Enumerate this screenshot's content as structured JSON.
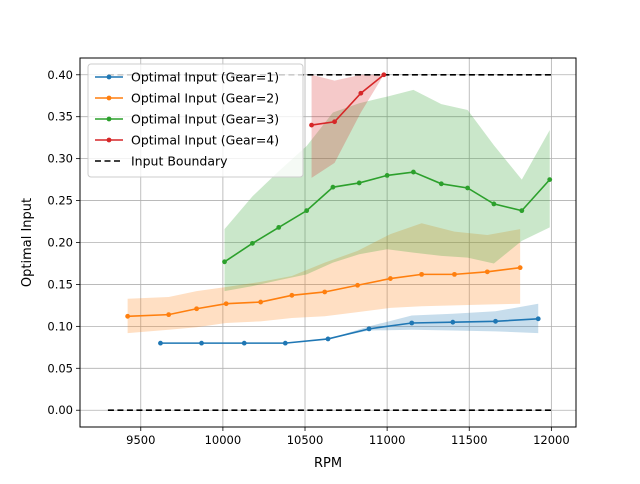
{
  "chart_data": {
    "type": "line",
    "title": "",
    "xlabel": "RPM",
    "ylabel": "Optimal Input",
    "xlim": [
      9130,
      12150
    ],
    "ylim": [
      -0.02,
      0.42
    ],
    "xticks": [
      9500,
      10000,
      10500,
      11000,
      11500,
      12000
    ],
    "xtick_labels": [
      "9500",
      "10000",
      "10500",
      "11000",
      "11500",
      "12000"
    ],
    "yticks": [
      0.0,
      0.05,
      0.1,
      0.15,
      0.2,
      0.25,
      0.3,
      0.35,
      0.4
    ],
    "ytick_labels": [
      "0.00",
      "0.05",
      "0.10",
      "0.15",
      "0.20",
      "0.25",
      "0.30",
      "0.35",
      "0.40"
    ],
    "grid": true,
    "legend_position": "top-left",
    "series": [
      {
        "name": "Optimal Input (Gear=1)",
        "color": "#1f77b4",
        "x": [
          9620,
          9870,
          10130,
          10380,
          10640,
          10890,
          11150,
          11400,
          11660,
          11920
        ],
        "y": [
          0.08,
          0.08,
          0.08,
          0.08,
          0.085,
          0.097,
          0.104,
          0.105,
          0.106,
          0.109
        ],
        "band": {
          "x": [
            10640,
            10890,
            11150,
            11400,
            11660,
            11920
          ],
          "upper": [
            0.085,
            0.1,
            0.113,
            0.115,
            0.118,
            0.127
          ],
          "lower": [
            0.085,
            0.095,
            0.096,
            0.095,
            0.094,
            0.092
          ]
        }
      },
      {
        "name": "Optimal Input (Gear=2)",
        "color": "#ff7f0e",
        "x": [
          9420,
          9670,
          9840,
          10020,
          10230,
          10420,
          10620,
          10820,
          11020,
          11210,
          11410,
          11610,
          11810
        ],
        "y": [
          0.112,
          0.114,
          0.121,
          0.127,
          0.129,
          0.137,
          0.141,
          0.149,
          0.157,
          0.162,
          0.162,
          0.165,
          0.17
        ],
        "band": {
          "x": [
            9420,
            9670,
            9840,
            10020,
            10230,
            10420,
            10620,
            10820,
            11020,
            11210,
            11410,
            11610,
            11810
          ],
          "upper": [
            0.133,
            0.135,
            0.142,
            0.147,
            0.153,
            0.16,
            0.176,
            0.19,
            0.21,
            0.223,
            0.213,
            0.209,
            0.216
          ],
          "lower": [
            0.092,
            0.096,
            0.099,
            0.104,
            0.106,
            0.11,
            0.112,
            0.117,
            0.122,
            0.124,
            0.125,
            0.126,
            0.127
          ]
        }
      },
      {
        "name": "Optimal Input (Gear=3)",
        "color": "#2ca02c",
        "x": [
          10010,
          10180,
          10340,
          10510,
          10670,
          10830,
          11000,
          11160,
          11330,
          11490,
          11650,
          11820,
          11990
        ],
        "y": [
          0.177,
          0.199,
          0.218,
          0.238,
          0.266,
          0.271,
          0.28,
          0.284,
          0.27,
          0.265,
          0.246,
          0.238,
          0.275
        ],
        "band": {
          "x": [
            10010,
            10180,
            10340,
            10510,
            10670,
            10830,
            11000,
            11160,
            11330,
            11490,
            11650,
            11820,
            11990
          ],
          "upper": [
            0.216,
            0.255,
            0.285,
            0.315,
            0.355,
            0.366,
            0.374,
            0.382,
            0.365,
            0.358,
            0.316,
            0.275,
            0.334
          ],
          "lower": [
            0.142,
            0.148,
            0.155,
            0.162,
            0.176,
            0.186,
            0.192,
            0.188,
            0.184,
            0.182,
            0.175,
            0.202,
            0.218
          ]
        }
      },
      {
        "name": "Optimal Input (Gear=4)",
        "color": "#d62728",
        "x": [
          10540,
          10680,
          10840,
          10980
        ],
        "y": [
          0.34,
          0.344,
          0.378,
          0.4
        ],
        "band": {
          "x": [
            10540,
            10680,
            10840,
            10980
          ],
          "upper": [
            0.4,
            0.393,
            0.4,
            0.4
          ],
          "lower": [
            0.277,
            0.295,
            0.355,
            0.4
          ]
        }
      }
    ],
    "boundaries": {
      "name": "Input Boundary",
      "color": "#000000",
      "style": "dashed",
      "lines": [
        {
          "x": [
            9300,
            12000
          ],
          "y": 0.4
        },
        {
          "x": [
            9300,
            12000
          ],
          "y": 0.0
        }
      ]
    }
  }
}
